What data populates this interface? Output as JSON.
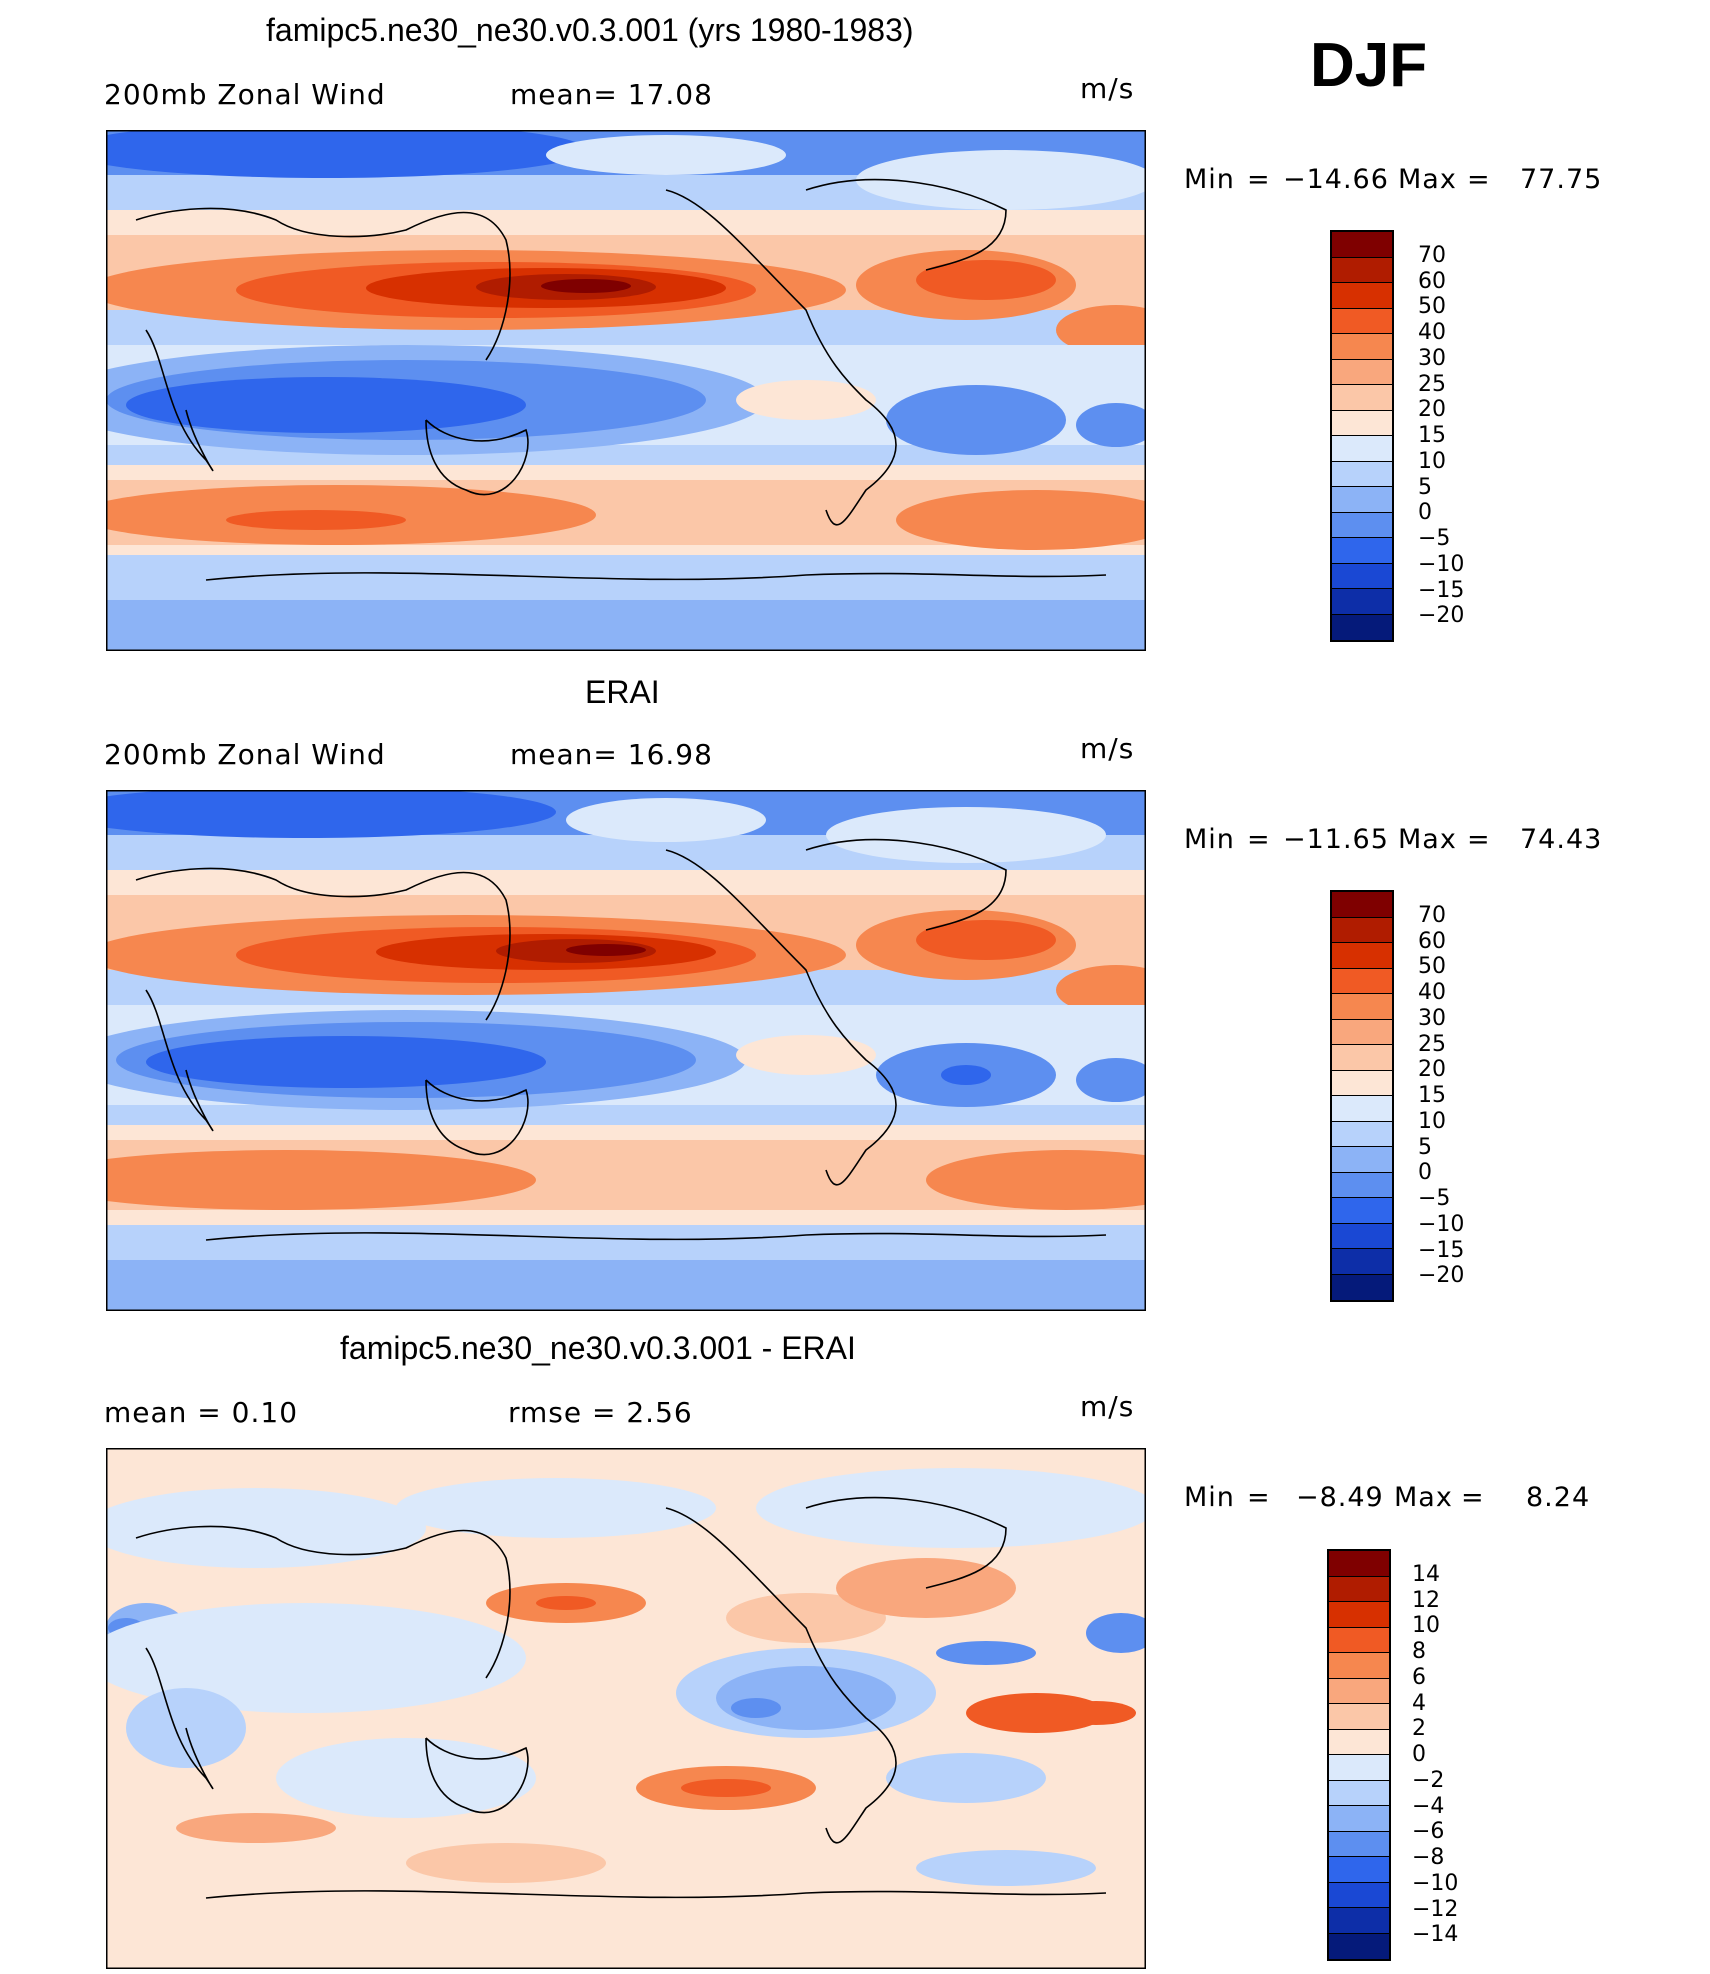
{
  "season": "DJF",
  "units": "m/s",
  "panels": [
    {
      "id": "model",
      "title": "famipc5.ne30_ne30.v0.3.001 (yrs 1980-1983)",
      "left_label": "200mb  Zonal  Wind",
      "mean_label": "mean=   17.08",
      "units": "m/s",
      "min_label": "Min",
      "min_value": "−14.66",
      "max_label": "Max",
      "max_value": "77.75",
      "colorbar": {
        "labels": [
          "70",
          "60",
          "50",
          "40",
          "30",
          "25",
          "20",
          "15",
          "10",
          "5",
          "0",
          "−5",
          "−10",
          "−15",
          "−20"
        ],
        "colors": [
          "#7f0000",
          "#b01c00",
          "#d73000",
          "#f05a24",
          "#f6874f",
          "#f9a77d",
          "#fbc7a8",
          "#fde6d6",
          "#dbe9fb",
          "#b7d2fb",
          "#8cb3f6",
          "#5d8ff0",
          "#2f66ec",
          "#1a48d4",
          "#0d2ea8",
          "#051a7a"
        ]
      }
    },
    {
      "id": "obs",
      "title": "ERAI",
      "left_label": "200mb  Zonal  Wind",
      "mean_label": "mean=   16.98",
      "units": "m/s",
      "min_label": "Min",
      "min_value": "−11.65",
      "max_label": "Max",
      "max_value": "74.43",
      "colorbar": {
        "labels": [
          "70",
          "60",
          "50",
          "40",
          "30",
          "25",
          "20",
          "15",
          "10",
          "5",
          "0",
          "−5",
          "−10",
          "−15",
          "−20"
        ],
        "colors": [
          "#7f0000",
          "#b01c00",
          "#d73000",
          "#f05a24",
          "#f6874f",
          "#f9a77d",
          "#fbc7a8",
          "#fde6d6",
          "#dbe9fb",
          "#b7d2fb",
          "#8cb3f6",
          "#5d8ff0",
          "#2f66ec",
          "#1a48d4",
          "#0d2ea8",
          "#051a7a"
        ]
      }
    },
    {
      "id": "diff",
      "title": "famipc5.ne30_ne30.v0.3.001 - ERAI",
      "left_label": "mean  =     0.10",
      "mean_label": "rmse  =     2.56",
      "units": "m/s",
      "min_label": "Min",
      "min_value": "−8.49",
      "max_label": "Max",
      "max_value": "8.24",
      "colorbar": {
        "labels": [
          "14",
          "12",
          "10",
          "8",
          "6",
          "4",
          "2",
          "0",
          "−2",
          "−4",
          "−6",
          "−8",
          "−10",
          "−12",
          "−14"
        ],
        "colors": [
          "#7f0000",
          "#b01c00",
          "#d73000",
          "#f05a24",
          "#f6874f",
          "#f9a77d",
          "#fbc7a8",
          "#fde6d6",
          "#dbe9fb",
          "#b7d2fb",
          "#8cb3f6",
          "#5d8ff0",
          "#2f66ec",
          "#1a48d4",
          "#0d2ea8",
          "#051a7a"
        ]
      }
    }
  ]
}
